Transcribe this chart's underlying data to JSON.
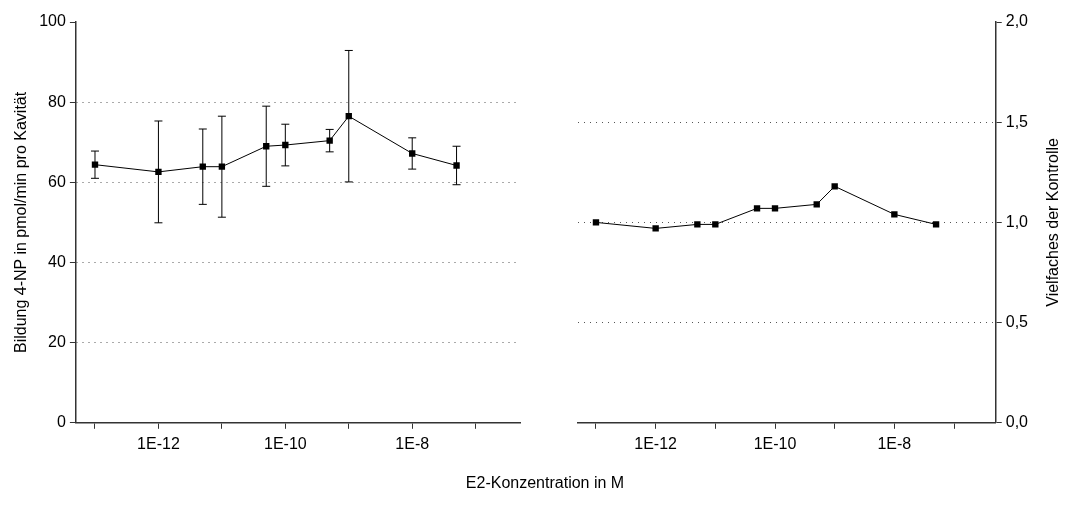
{
  "chart_data": [
    {
      "type": "line",
      "xlabel": "E2-Konzentration in M",
      "ylabel": "Bildung 4-NP in pmol/min pro Kavität",
      "x": [
        1e-13,
        1e-12,
        5e-12,
        1e-11,
        5e-11,
        1e-10,
        5e-10,
        1e-09,
        1e-08,
        5e-08
      ],
      "series": [
        {
          "color": "#000000",
          "values": [
            64.4,
            62.6,
            63.9,
            63.9,
            69.0,
            69.3,
            70.4,
            76.5,
            67.2,
            64.2
          ],
          "errors": [
            3.4,
            12.7,
            9.4,
            12.6,
            10.0,
            5.2,
            2.8,
            16.4,
            3.9,
            4.8
          ]
        }
      ],
      "log": "x",
      "xlim": [
        5e-14,
        5e-07
      ],
      "xticks": [
        {
          "value": 1e-13,
          "label": null
        },
        {
          "value": 1e-12,
          "label": "1E-12"
        },
        {
          "value": 1e-11,
          "label": null
        },
        {
          "value": 1e-10,
          "label": "1E-10"
        },
        {
          "value": 1e-09,
          "label": null
        },
        {
          "value": 1e-08,
          "label": "1E-8"
        },
        {
          "value": 1e-07,
          "label": null
        }
      ],
      "ylim": [
        0,
        100
      ],
      "yticks": [
        0,
        20,
        40,
        60,
        80,
        100
      ],
      "grid": "y",
      "marker": "square",
      "line_style": "solid"
    },
    {
      "type": "line",
      "y2label": "Vielfaches der Kontrolle",
      "x": [
        1e-13,
        1e-12,
        5e-12,
        1e-11,
        5e-11,
        1e-10,
        5e-10,
        1e-09,
        1e-08,
        5e-08
      ],
      "series": [
        {
          "color": "#000000",
          "axis": "y2",
          "values": [
            1.0,
            0.97,
            0.99,
            0.99,
            1.07,
            1.07,
            1.09,
            1.18,
            1.04,
            0.99
          ]
        }
      ],
      "log": "x",
      "xlim": [
        5e-14,
        5e-07
      ],
      "xticks": [
        {
          "value": 1e-13,
          "label": null
        },
        {
          "value": 1e-12,
          "label": "1E-12"
        },
        {
          "value": 1e-11,
          "label": null
        },
        {
          "value": 1e-10,
          "label": "1E-10"
        },
        {
          "value": 1e-09,
          "label": null
        },
        {
          "value": 1e-08,
          "label": "1E-8"
        },
        {
          "value": 1e-07,
          "label": null
        }
      ],
      "y2lim": [
        0,
        2
      ],
      "y2ticks": [
        {
          "value": 0,
          "label": "0,0"
        },
        {
          "value": 0.5,
          "label": "0,5"
        },
        {
          "value": 1,
          "label": "1,0"
        },
        {
          "value": 1.5,
          "label": "1,5"
        },
        {
          "value": 2,
          "label": "2,0"
        }
      ],
      "grid": "y",
      "marker": "square",
      "line_style": "solid"
    }
  ]
}
